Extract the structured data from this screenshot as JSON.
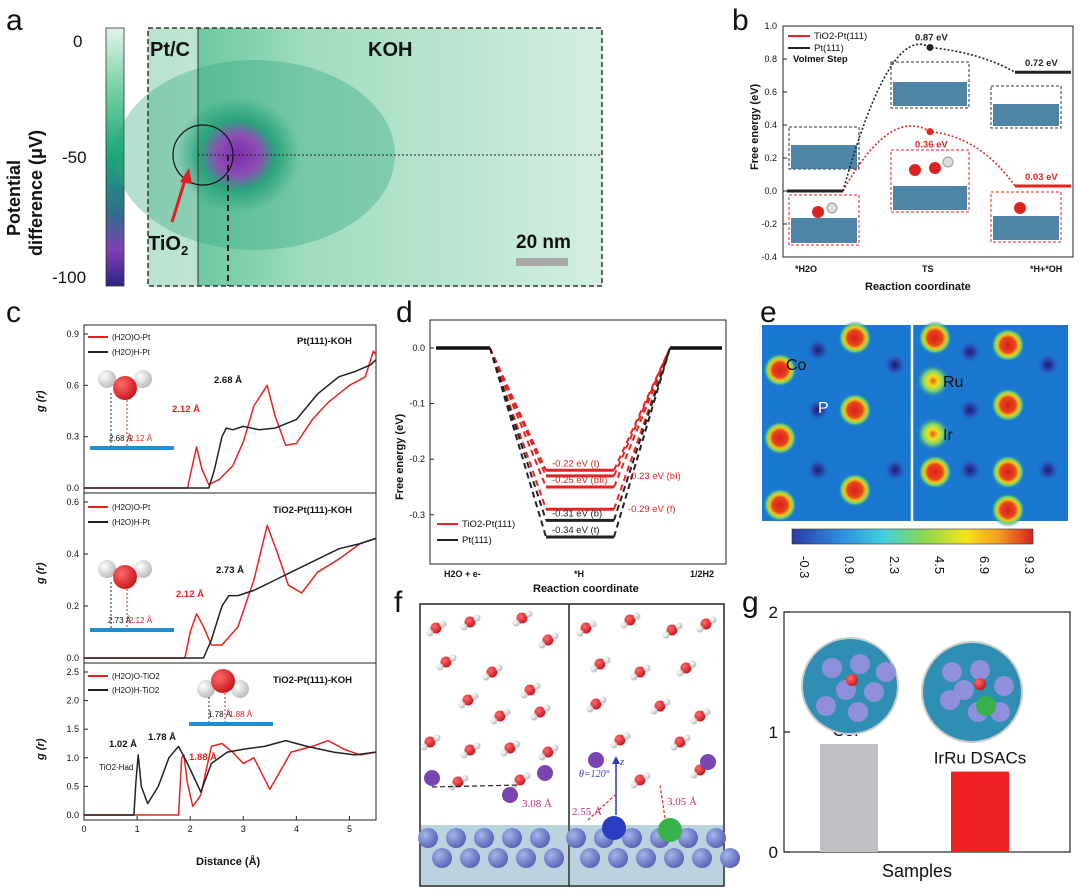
{
  "labels": {
    "a": "a",
    "b": "b",
    "c": "c",
    "d": "d",
    "e": "e",
    "f": "f",
    "g": "g"
  },
  "panel_a": {
    "colorbar_label_1": "Potential",
    "colorbar_label_2": "difference (μV)",
    "colorbar_ticks": [
      "0",
      "-50",
      "-100"
    ],
    "region_left": "Pt/C",
    "region_right": "KOH",
    "particle_label": "TiO",
    "particle_sub": "2",
    "scale_bar": "20 nm"
  },
  "chart_data": [
    {
      "id": "b",
      "type": "line",
      "title": "Volmer Step",
      "xlabel": "Reaction coordinate",
      "ylabel": "Free energy (eV)",
      "ylim": [
        -0.4,
        1.0
      ],
      "yticks": [
        "1.0",
        "0.8",
        "0.6",
        "0.4",
        "0.2",
        "0.0",
        "-0.2",
        "-0.4"
      ],
      "categories": [
        "*H2O",
        "TS",
        "*H+*OH"
      ],
      "series": [
        {
          "name": "TiO2-Pt(111)",
          "color": "#e8231f",
          "values": [
            0.0,
            0.36,
            0.03
          ],
          "labels": [
            "",
            "0.36 eV",
            "0.03 eV"
          ]
        },
        {
          "name": "Pt(111)",
          "color": "#222222",
          "values": [
            0.0,
            0.87,
            0.72
          ],
          "labels": [
            "",
            "0.87 eV",
            "0.72 eV"
          ]
        }
      ],
      "legend": [
        "TiO2-Pt(111)",
        "Pt(111)"
      ]
    },
    {
      "id": "c",
      "type": "line",
      "xlabel": "Distance (Å)",
      "ylabel": "g (r)",
      "xlim": [
        0,
        5.5
      ],
      "xticks": [
        "0",
        "1",
        "2",
        "3",
        "4",
        "5"
      ],
      "subplots": [
        {
          "title": "Pt(111)-KOH",
          "ylim": [
            0,
            0.9
          ],
          "yticks": [
            "0.9",
            "0.6",
            "0.3",
            "0.0"
          ],
          "legend": [
            "(H2O)O-Pt",
            "(H2O)H-Pt"
          ],
          "annotations": [
            "2.12 Å",
            "2.68 Å"
          ],
          "inset": [
            "2.68 Å",
            "2.12 Å"
          ],
          "series": [
            {
              "name": "(H2O)O-Pt",
              "x": [
                0,
                1.95,
                2.02,
                2.12,
                2.22,
                2.35,
                2.55,
                2.8,
                3.0,
                3.2,
                3.45,
                3.6,
                3.8,
                4.0,
                4.3,
                4.6,
                5.0,
                5.3,
                5.45,
                5.5
              ],
              "y": [
                0,
                0,
                0.1,
                0.24,
                0.11,
                0.02,
                0.05,
                0.13,
                0.27,
                0.48,
                0.6,
                0.42,
                0.25,
                0.26,
                0.4,
                0.5,
                0.6,
                0.65,
                0.8,
                0.78
              ]
            },
            {
              "name": "(H2O)H-Pt",
              "x": [
                0,
                2.35,
                2.45,
                2.6,
                2.68,
                2.8,
                3.0,
                3.3,
                3.6,
                4.0,
                4.4,
                4.8,
                5.1,
                5.4,
                5.5
              ],
              "y": [
                0,
                0,
                0.1,
                0.3,
                0.35,
                0.34,
                0.36,
                0.34,
                0.35,
                0.4,
                0.55,
                0.65,
                0.68,
                0.72,
                0.75
              ]
            }
          ]
        },
        {
          "title": "TiO2-Pt(111)-KOH",
          "ylim": [
            0,
            0.6
          ],
          "yticks": [
            "0.6",
            "0.4",
            "0.2",
            "0.0"
          ],
          "legend": [
            "(H2O)O-Pt",
            "(H2O)H-Pt"
          ],
          "annotations": [
            "2.12 Å",
            "2.73 Å"
          ],
          "inset": [
            "2.73 Å",
            "2.12 Å"
          ],
          "series": [
            {
              "name": "(H2O)O-Pt",
              "x": [
                0,
                1.9,
                2.0,
                2.12,
                2.25,
                2.4,
                2.6,
                2.9,
                3.2,
                3.45,
                3.65,
                3.85,
                4.1,
                4.4,
                4.8,
                5.2,
                5.5
              ],
              "y": [
                0,
                0,
                0.1,
                0.17,
                0.12,
                0.05,
                0.05,
                0.12,
                0.3,
                0.51,
                0.4,
                0.28,
                0.25,
                0.33,
                0.38,
                0.44,
                0.46
              ]
            },
            {
              "name": "(H2O)H-Pt",
              "x": [
                0,
                2.25,
                2.4,
                2.6,
                2.73,
                2.9,
                3.2,
                3.6,
                4.0,
                4.4,
                4.8,
                5.2,
                5.5
              ],
              "y": [
                0,
                0,
                0.07,
                0.2,
                0.24,
                0.24,
                0.26,
                0.3,
                0.34,
                0.38,
                0.42,
                0.44,
                0.46
              ]
            }
          ]
        },
        {
          "title": "TiO2-Pt(111)-KOH",
          "ylim": [
            0,
            2.5
          ],
          "yticks": [
            "2.5",
            "2.0",
            "1.5",
            "1.0",
            "0.5",
            "0.0"
          ],
          "legend": [
            "(H2O)O-TiO2",
            "(H2O)H-TiO2"
          ],
          "annotations": [
            "1.02 Å",
            "1.78 Å",
            "1.88 Å",
            "TiO2-Had"
          ],
          "inset": [
            "1.78 Å",
            "1.88 Å"
          ],
          "series": [
            {
              "name": "(H2O)O-TiO2",
              "x": [
                0,
                1.78,
                1.84,
                1.88,
                1.95,
                2.05,
                2.2,
                2.4,
                2.6,
                2.8,
                3.0,
                3.2,
                3.5,
                3.9,
                4.3,
                4.6,
                4.9,
                5.2,
                5.5
              ],
              "y": [
                0,
                0,
                1.0,
                1.05,
                0.55,
                0.15,
                0.35,
                1.2,
                1.25,
                1.1,
                0.9,
                1.0,
                0.45,
                1.1,
                1.2,
                1.3,
                1.15,
                1.05,
                1.1
              ]
            },
            {
              "name": "(H2O)H-TiO2",
              "x": [
                0,
                0.94,
                0.98,
                1.02,
                1.08,
                1.2,
                1.4,
                1.6,
                1.78,
                1.95,
                2.2,
                2.4,
                2.7,
                3.0,
                3.4,
                3.8,
                4.2,
                4.7,
                5.1,
                5.5
              ],
              "y": [
                0,
                0,
                0.6,
                1.05,
                0.5,
                0.2,
                0.5,
                1.0,
                1.2,
                0.9,
                0.4,
                0.9,
                1.1,
                1.15,
                1.2,
                1.3,
                1.2,
                1.1,
                1.05,
                1.1
              ]
            }
          ]
        }
      ]
    },
    {
      "id": "d",
      "type": "line",
      "xlabel": "Reaction coordinate",
      "ylabel": "Free energy (eV)",
      "ylim": [
        -0.37,
        0.02
      ],
      "yticks": [
        "0.0",
        "-0.1",
        "-0.2",
        "-0.3"
      ],
      "categories": [
        "H2O + e-",
        "*H",
        "1/2H2"
      ],
      "legend": [
        "TiO2-Pt(111)",
        "Pt(111)"
      ],
      "levels": [
        {
          "value": -0.22,
          "label": "-0.22 eV (t)",
          "color": "#e8231f",
          "side": "left"
        },
        {
          "value": -0.23,
          "label": "-0.23 eV (bI)",
          "color": "#e8231f",
          "side": "right"
        },
        {
          "value": -0.25,
          "label": "-0.25 eV (bII)",
          "color": "#e8231f",
          "side": "left"
        },
        {
          "value": -0.29,
          "label": "-0.29 eV (f)",
          "color": "#e8231f",
          "side": "right"
        },
        {
          "value": -0.31,
          "label": "-0.31 eV (b)",
          "color": "#222222",
          "side": "left"
        },
        {
          "value": -0.34,
          "label": "-0.34 eV (t)",
          "color": "#222222",
          "side": "left"
        }
      ]
    },
    {
      "id": "e",
      "type": "heatmap",
      "colorbar_ticks": [
        "-0.3",
        "0.9",
        "2.3",
        "4.5",
        "6.9",
        "9.3"
      ],
      "atom_labels": [
        "Co",
        "P",
        "Ru",
        "Ir"
      ]
    },
    {
      "id": "f",
      "type": "diagram",
      "annotations": [
        "3.08 Å",
        "2.55 Å",
        "3.05 Å",
        "θ=120°",
        "z"
      ]
    },
    {
      "id": "g",
      "type": "bar",
      "xlabel": "Samples",
      "ylim": [
        0,
        2
      ],
      "yticks": [
        "2",
        "1",
        "0"
      ],
      "categories": [
        "CoP",
        "IrRu DSACs"
      ],
      "values": [
        0.9,
        0.67
      ],
      "colors": [
        "#bfc0c4",
        "#ed2124"
      ]
    }
  ]
}
